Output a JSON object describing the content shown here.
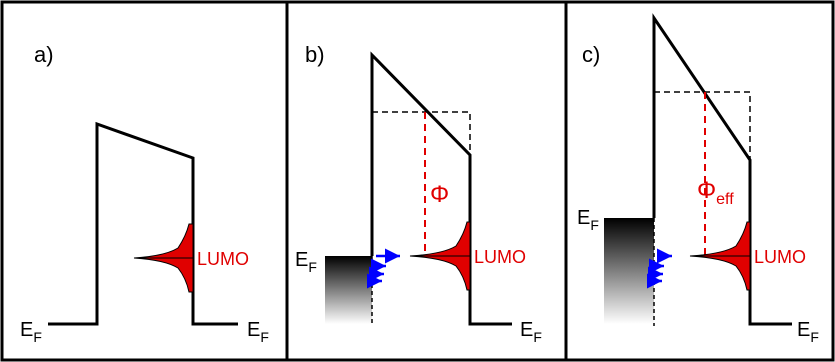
{
  "panels": [
    {
      "label": "a)",
      "ef_left": "E",
      "ef_left_sub": "F",
      "ef_right": "E",
      "ef_right_sub": "F",
      "lumo": "LUMO"
    },
    {
      "label": "b)",
      "ef_left": "E",
      "ef_left_sub": "F",
      "ef_right": "E",
      "ef_right_sub": "F",
      "lumo": "LUMO",
      "phi": "Φ",
      "phi_sub": ""
    },
    {
      "label": "c)",
      "ef_left": "E",
      "ef_left_sub": "F",
      "ef_right": "E",
      "ef_right_sub": "F",
      "lumo": "LUMO",
      "phi": "Φ",
      "phi_sub": "eff"
    }
  ],
  "colors": {
    "border": "#000000",
    "lumo": "#e00000",
    "arrow": "#0000ff"
  }
}
